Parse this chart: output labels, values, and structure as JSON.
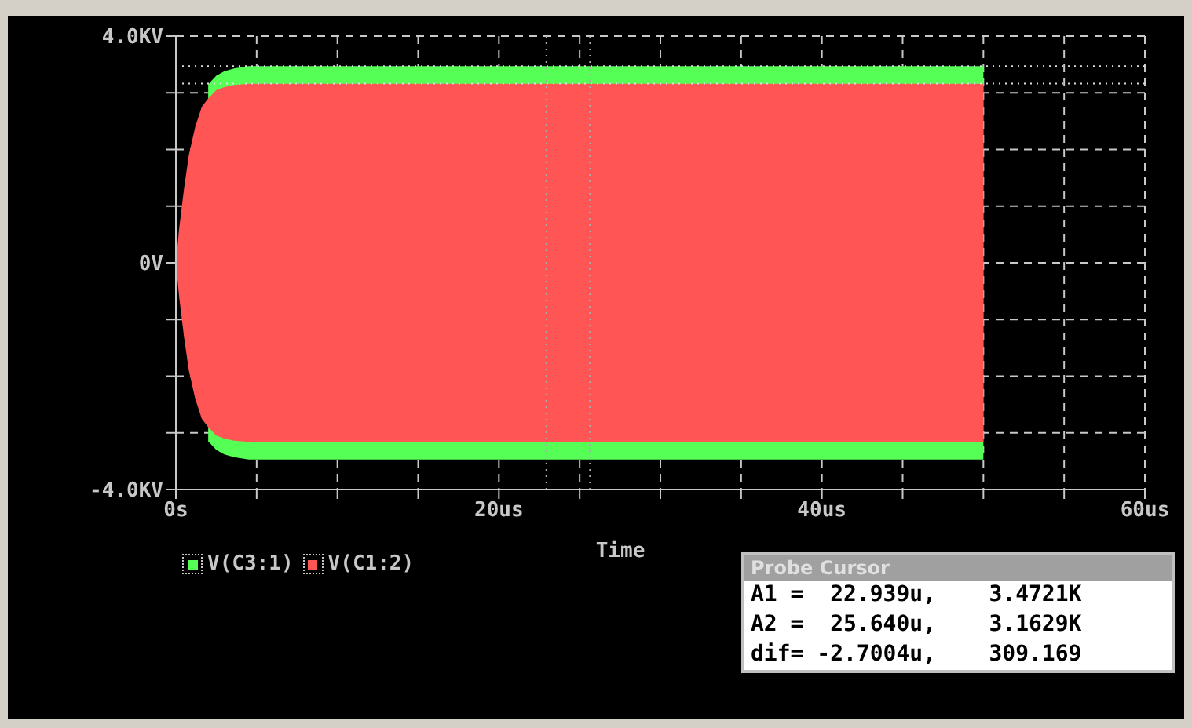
{
  "chart_data": {
    "type": "area",
    "xlabel": "Time",
    "x": [
      0,
      0.2,
      0.5,
      0.8,
      1.2,
      1.6,
      2.0,
      2.5,
      3.0,
      3.6,
      4.5,
      50
    ],
    "series": [
      {
        "name": "V(C3:1)",
        "color": "#55ff55",
        "values": [
          null,
          null,
          null,
          null,
          null,
          null,
          3.15,
          3.3,
          3.38,
          3.43,
          3.47,
          3.47
        ]
      },
      {
        "color": "#55ff55",
        "values": [
          null,
          null,
          null,
          null,
          null,
          null,
          -3.15,
          -3.3,
          -3.38,
          -3.43,
          -3.47,
          -3.47
        ]
      },
      {
        "name": "V(C1:2)",
        "color": "#ff5555",
        "values": [
          0,
          0.6,
          1.3,
          1.9,
          2.4,
          2.75,
          2.9,
          3.05,
          3.1,
          3.14,
          3.16,
          3.16
        ]
      },
      {
        "color": "#ff5555",
        "values": [
          0,
          -0.6,
          -1.3,
          -1.9,
          -2.4,
          -2.75,
          -2.9,
          -3.05,
          -3.1,
          -3.14,
          -3.16,
          -3.16
        ]
      }
    ],
    "xlim": [
      0,
      60
    ],
    "xticks": [
      {
        "value": 0,
        "label": "0s"
      },
      {
        "value": 5,
        "label": null
      },
      {
        "value": 10,
        "label": null
      },
      {
        "value": 15,
        "label": null
      },
      {
        "value": 20,
        "label": "20us"
      },
      {
        "value": 25,
        "label": null
      },
      {
        "value": 30,
        "label": null
      },
      {
        "value": 35,
        "label": null
      },
      {
        "value": 40,
        "label": "40us"
      },
      {
        "value": 45,
        "label": null
      },
      {
        "value": 50,
        "label": null
      },
      {
        "value": 55,
        "label": null
      },
      {
        "value": 60,
        "label": "60us"
      }
    ],
    "ylim": [
      -4,
      4
    ],
    "yticks": [
      {
        "value": -4,
        "label": "-4.0KV"
      },
      {
        "value": -3,
        "label": null
      },
      {
        "value": -2,
        "label": null
      },
      {
        "value": -1,
        "label": null
      },
      {
        "value": 0,
        "label": "0V"
      },
      {
        "value": 1,
        "label": null
      },
      {
        "value": 2,
        "label": null
      },
      {
        "value": 3,
        "label": null
      },
      {
        "value": 4,
        "label": "4.0KV"
      }
    ],
    "grid": true,
    "legend": "bottom left",
    "ref_lines": [
      {
        "axis": "x",
        "value": 22.939,
        "color": "#aaaaaa",
        "line_style": "dotted"
      },
      {
        "axis": "x",
        "value": 25.64,
        "color": "#aaaaaa",
        "line_style": "dotted"
      },
      {
        "axis": "y",
        "value": 3.4721,
        "color": "#dddddd",
        "line_style": "dotted"
      },
      {
        "axis": "y",
        "value": 3.1629,
        "color": "#dddddd",
        "line_style": "dotted"
      }
    ],
    "annotations": [
      "Probe Cursor",
      "A1 =  22.939u,    3.4721K",
      "A2 =  25.640u,    3.1629K",
      "dif= -2.7004u,    309.169"
    ]
  }
}
